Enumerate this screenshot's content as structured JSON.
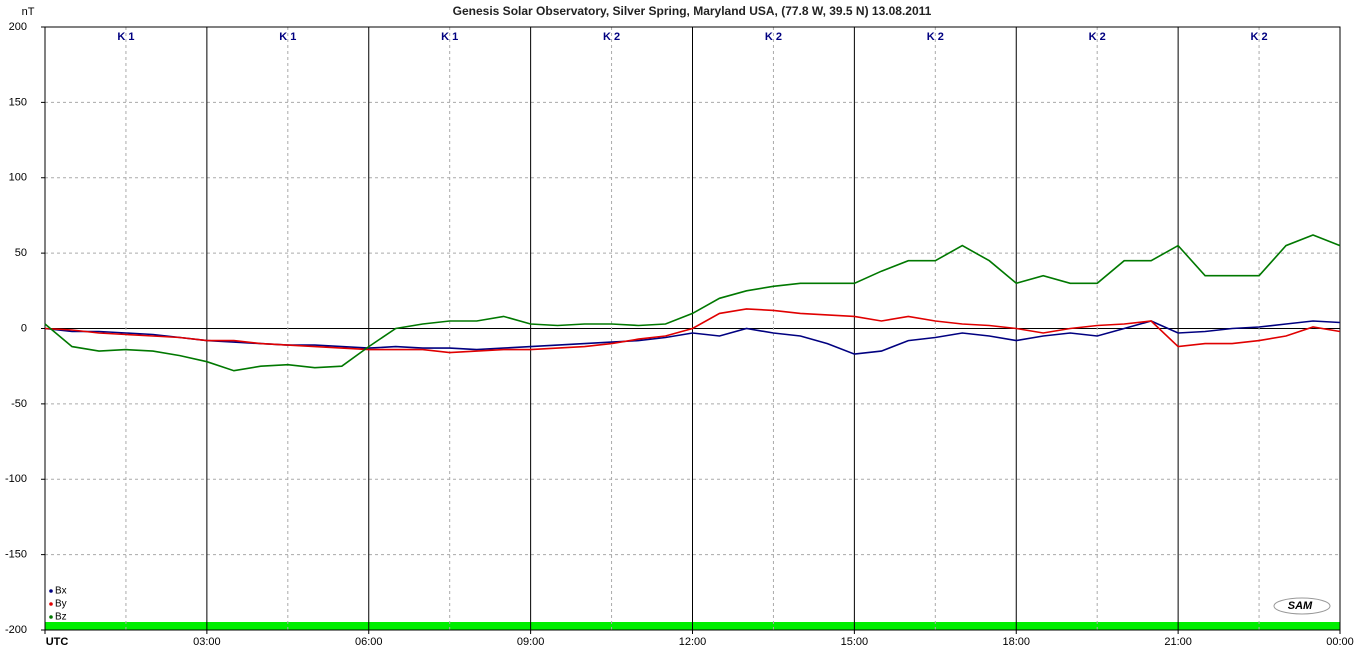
{
  "chart_data": {
    "type": "line",
    "title": "Genesis Solar Observatory, Silver Spring, Maryland USA, (77.8 W, 39.5 N)  13.08.2011",
    "y_label": "nT",
    "logo": "SAM",
    "k_index": [
      "K 1",
      "K 1",
      "K 1",
      "K 2",
      "K 2",
      "K 2",
      "K 2",
      "K 2"
    ],
    "x": [
      0,
      0.5,
      1,
      1.5,
      2,
      2.5,
      3,
      3.5,
      4,
      4.5,
      5,
      5.5,
      6,
      6.5,
      7,
      7.5,
      8,
      8.5,
      9,
      9.5,
      10,
      10.5,
      11,
      11.5,
      12,
      12.5,
      13,
      13.5,
      14,
      14.5,
      15,
      15.5,
      16,
      16.5,
      17,
      17.5,
      18,
      18.5,
      19,
      19.5,
      20,
      20.5,
      21,
      21.5,
      22,
      22.5,
      23,
      23.5,
      24
    ],
    "series": [
      {
        "name": "Bx",
        "color": "#000080",
        "values": [
          0,
          -2,
          -2,
          -3,
          -4,
          -6,
          -8,
          -9,
          -10,
          -11,
          -11,
          -12,
          -13,
          -12,
          -13,
          -13,
          -14,
          -13,
          -12,
          -11,
          -10,
          -9,
          -8,
          -6,
          -3,
          -5,
          0,
          -3,
          -5,
          -10,
          -17,
          -15,
          -8,
          -6,
          -3,
          -5,
          -8,
          -5,
          -3,
          -5,
          0,
          5,
          -3,
          -2,
          0,
          1,
          3,
          5,
          4
        ]
      },
      {
        "name": "By",
        "color": "#e00000",
        "values": [
          0,
          -1,
          -3,
          -4,
          -5,
          -6,
          -8,
          -8,
          -10,
          -11,
          -12,
          -13,
          -14,
          -14,
          -14,
          -16,
          -15,
          -14,
          -14,
          -13,
          -12,
          -10,
          -7,
          -5,
          0,
          10,
          13,
          12,
          10,
          9,
          8,
          5,
          8,
          5,
          3,
          2,
          0,
          -3,
          0,
          2,
          3,
          5,
          -12,
          -10,
          -10,
          -8,
          -5,
          1,
          -2
        ]
      },
      {
        "name": "Bz",
        "color": "#007800",
        "values": [
          3,
          -12,
          -15,
          -14,
          -15,
          -18,
          -22,
          -28,
          -25,
          -24,
          -26,
          -25,
          -12,
          0,
          3,
          5,
          5,
          8,
          3,
          2,
          3,
          3,
          2,
          3,
          10,
          20,
          25,
          28,
          30,
          30,
          30,
          38,
          45,
          45,
          55,
          45,
          30,
          35,
          30,
          30,
          45,
          45,
          55,
          35,
          35,
          35,
          55,
          62,
          55
        ]
      }
    ],
    "xlim": [
      0,
      24
    ],
    "xticks": [
      {
        "value": 0,
        "label": "UTC"
      },
      {
        "value": 3,
        "label": "03:00"
      },
      {
        "value": 6,
        "label": "06:00"
      },
      {
        "value": 9,
        "label": "09:00"
      },
      {
        "value": 12,
        "label": "12:00"
      },
      {
        "value": 15,
        "label": "15:00"
      },
      {
        "value": 18,
        "label": "18:00"
      },
      {
        "value": 21,
        "label": "21:00"
      },
      {
        "value": 24,
        "label": "00:00"
      }
    ],
    "ylim": [
      -200,
      200
    ],
    "yticks": [
      -200,
      -150,
      -100,
      -50,
      0,
      50,
      100,
      150,
      200
    ],
    "grid": true
  }
}
